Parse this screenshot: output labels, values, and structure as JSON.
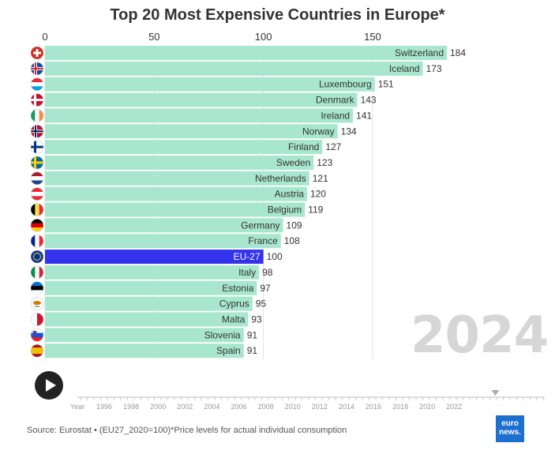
{
  "chart_data": {
    "type": "bar",
    "title": "Top 20 Most Expensive Countries in Europe*",
    "xlim": [
      0,
      184
    ],
    "xticks": [
      0,
      50,
      100,
      150
    ],
    "categories": [
      "Switzerland",
      "Iceland",
      "Luxembourg",
      "Denmark",
      "Ireland",
      "Norway",
      "Finland",
      "Sweden",
      "Netherlands",
      "Austria",
      "Belgium",
      "Germany",
      "France",
      "EU-27",
      "Italy",
      "Estonia",
      "Cyprus",
      "Malta",
      "Slovenia",
      "Spain"
    ],
    "values": [
      184,
      173,
      151,
      143,
      141,
      134,
      127,
      123,
      121,
      120,
      119,
      109,
      108,
      100,
      98,
      97,
      95,
      93,
      91,
      91
    ],
    "highlight": "EU-27",
    "colors": {
      "bar": "#a8e6cf",
      "highlight": "#3333ee",
      "grid": "#e2e2e2"
    },
    "flags": [
      "switzerland-flag-icon",
      "iceland-flag-icon",
      "luxembourg-flag-icon",
      "denmark-flag-icon",
      "ireland-flag-icon",
      "norway-flag-icon",
      "finland-flag-icon",
      "sweden-flag-icon",
      "netherlands-flag-icon",
      "austria-flag-icon",
      "belgium-flag-icon",
      "germany-flag-icon",
      "france-flag-icon",
      "eu-flag-icon",
      "italy-flag-icon",
      "estonia-flag-icon",
      "cyprus-flag-icon",
      "malta-flag-icon",
      "slovenia-flag-icon",
      "spain-flag-icon"
    ]
  },
  "current_year": "2024",
  "timeline": {
    "label": "Year",
    "ticks": [
      "1996",
      "1998",
      "2000",
      "2002",
      "2004",
      "2006",
      "2008",
      "2010",
      "2012",
      "2014",
      "2016",
      "2018",
      "2020",
      "2022"
    ],
    "current_marker": "2024"
  },
  "source": "Source: Eurostat • (EU27_2020=100)*Price levels for actual individual consumption",
  "logo": {
    "line1": "euro",
    "line2": "news."
  }
}
